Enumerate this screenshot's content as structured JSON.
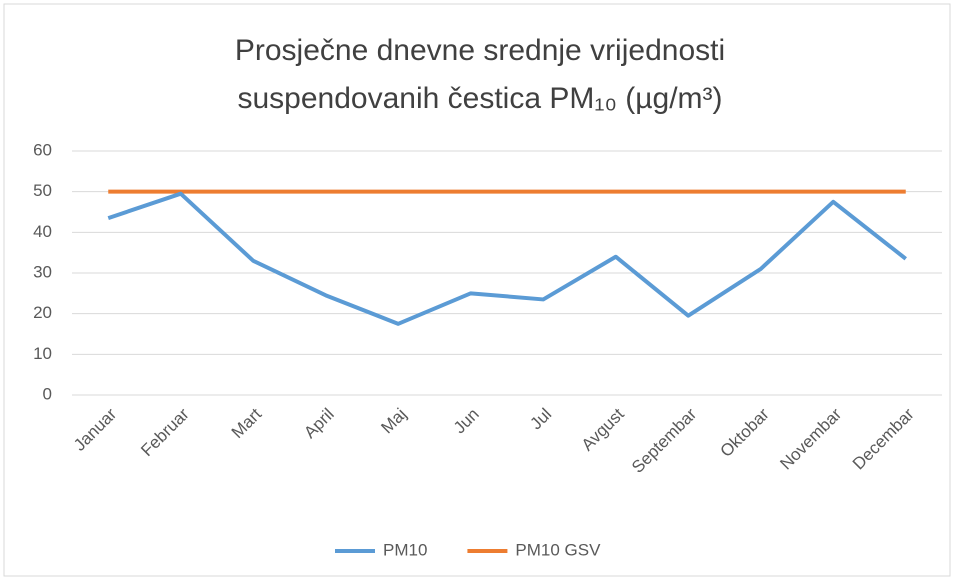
{
  "chart_data": {
    "type": "line",
    "title": [
      "Prosječne dnevne srednje vrijednosti",
      "suspendovanih čestica PM₁₀ (µg/m³)"
    ],
    "categories": [
      "Januar",
      "Februar",
      "Mart",
      "April",
      "Maj",
      "Jun",
      "Jul",
      "Avgust",
      "Septembar",
      "Oktobar",
      "Novembar",
      "Decembar"
    ],
    "series": [
      {
        "name": "PM10",
        "color": "#5b9bd5",
        "values": [
          43.5,
          49.5,
          33,
          24.5,
          17.5,
          25,
          23.5,
          34,
          19.5,
          31,
          47.5,
          33.5
        ]
      },
      {
        "name": "PM10 GSV",
        "color": "#ed7d31",
        "values": [
          50,
          50,
          50,
          50,
          50,
          50,
          50,
          50,
          50,
          50,
          50,
          50
        ]
      }
    ],
    "ylim": [
      0,
      60
    ],
    "yticks": [
      0,
      10,
      20,
      30,
      40,
      50,
      60
    ],
    "grid": true,
    "legend": "bottom"
  }
}
